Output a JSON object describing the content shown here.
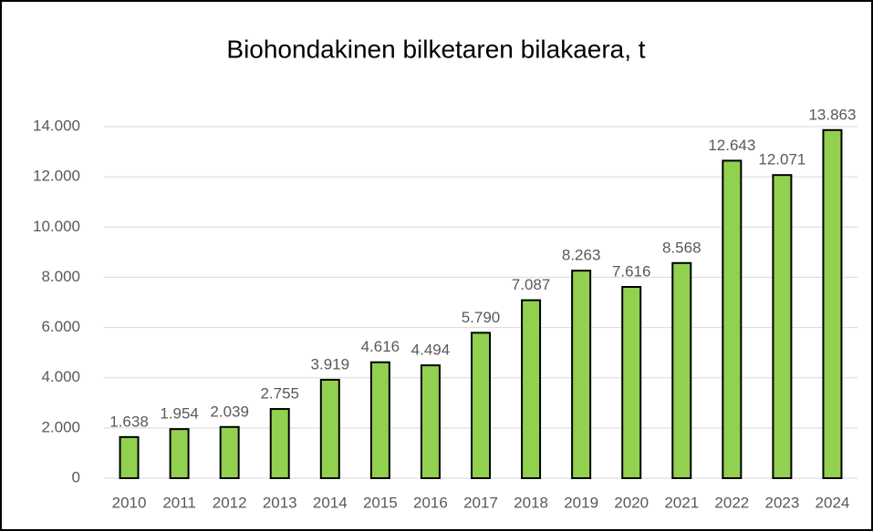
{
  "chart_data": {
    "type": "bar",
    "title": "Biohondakinen bilketaren bilakaera, t",
    "categories": [
      "2010",
      "2011",
      "2012",
      "2013",
      "2014",
      "2015",
      "2016",
      "2017",
      "2018",
      "2019",
      "2020",
      "2021",
      "2022",
      "2023",
      "2024"
    ],
    "values": [
      1638,
      1954,
      2039,
      2755,
      3919,
      4616,
      4494,
      5790,
      7087,
      8263,
      7616,
      8568,
      12643,
      12071,
      13863
    ],
    "value_labels": [
      "1.638",
      "1.954",
      "2.039",
      "2.755",
      "3.919",
      "4.616",
      "4.494",
      "5.790",
      "7.087",
      "8.263",
      "7.616",
      "8.568",
      "12.643",
      "12.071",
      "13.863"
    ],
    "color": "#92d050",
    "ylim": [
      0,
      14000
    ],
    "yticks": [
      0,
      {
        "value": 2000,
        "label": "2.000"
      },
      {
        "value": 4000,
        "label": "4.000"
      },
      {
        "value": 6000,
        "label": "6.000"
      },
      {
        "value": 8000,
        "label": "8.000"
      },
      {
        "value": 10000,
        "label": "10.000"
      },
      {
        "value": 12000,
        "label": "12.000"
      },
      {
        "value": 14000,
        "label": "14.000"
      }
    ],
    "grid": true
  }
}
